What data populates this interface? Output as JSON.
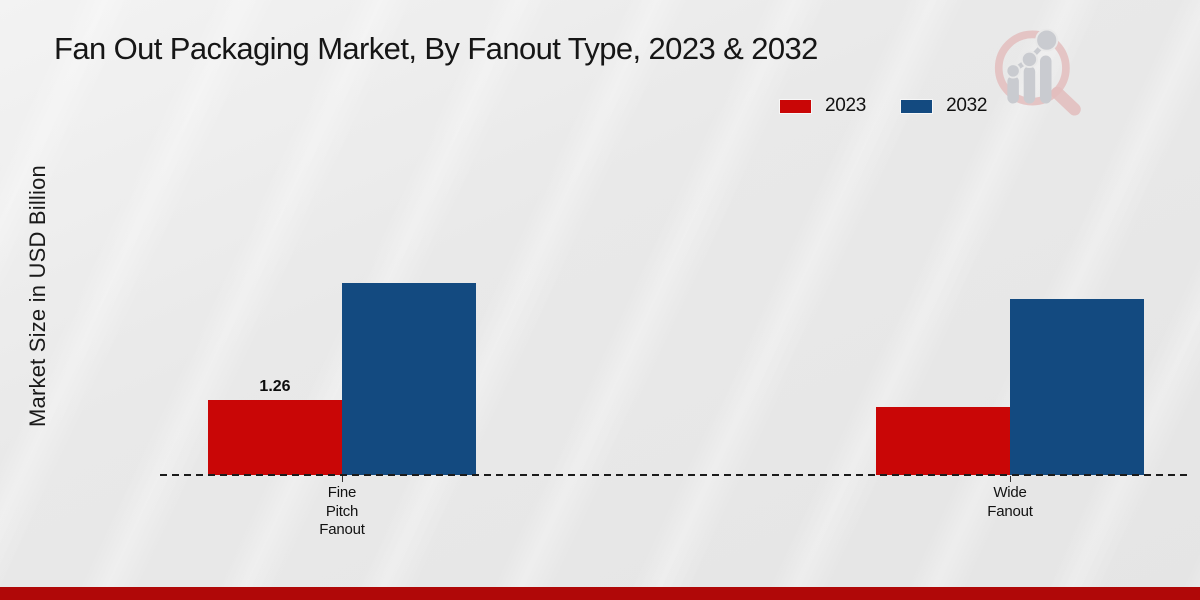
{
  "chart_data": {
    "type": "bar",
    "title": "Fan Out Packaging Market, By Fanout Type, 2023 & 2032",
    "ylabel": "Market Size in USD Billion",
    "xlabel": "",
    "categories": [
      "Fine Pitch Fanout",
      "Wide Fanout"
    ],
    "series": [
      {
        "name": "2023",
        "color": "#c90606",
        "values": [
          1.26,
          1.14
        ]
      },
      {
        "name": "2032",
        "color": "#134a80",
        "values": [
          3.23,
          2.96
        ]
      }
    ],
    "bar_labels": [
      {
        "series_index": 0,
        "category_index": 0,
        "text": "1.26"
      }
    ],
    "ylim": [
      0,
      3.5
    ],
    "grid": false,
    "legend_position": "top-right",
    "baseline_style": "dashed"
  },
  "logo": {
    "name": "market-research-magnifier-logo",
    "ring_color": "#e3bdbd",
    "chart_color": "#c9cbd0"
  },
  "footer": {
    "accent_bar_color": "#b00808"
  }
}
